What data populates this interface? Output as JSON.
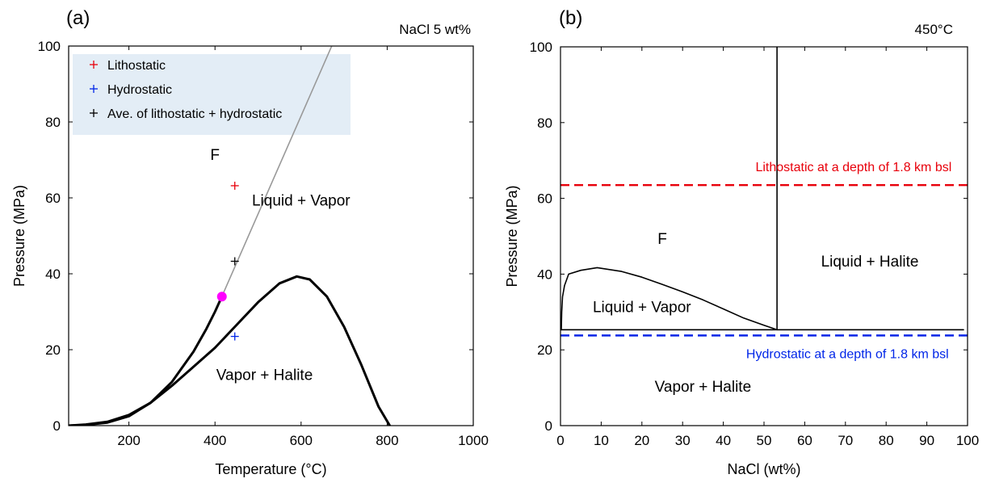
{
  "chart_data": [
    {
      "type": "line",
      "panel_label": "(a)",
      "corner_label": "NaCl 5 wt%",
      "xlabel": "Temperature (°C)",
      "ylabel": "Pressure (MPa)",
      "xlim": [
        60,
        1000
      ],
      "ylim": [
        0,
        100
      ],
      "x_ticks": [
        200,
        400,
        600,
        800,
        1000
      ],
      "y_ticks": [
        0,
        20,
        40,
        60,
        80,
        100
      ],
      "grid": false,
      "legend_position": "top-left",
      "legend": [
        {
          "label": "Lithostatic",
          "marker": "+",
          "color": "#e8000b"
        },
        {
          "label": "Hydrostatic",
          "marker": "+",
          "color": "#0025e8"
        },
        {
          "label": "Ave. of lithostatic + hydrostatic",
          "marker": "+",
          "color": "#000000"
        }
      ],
      "legend_bg": "#e3edf6",
      "series": [
        {
          "style": "thick-black",
          "color": "#000000",
          "x": [
            60,
            100,
            150,
            200,
            250,
            300,
            350,
            380,
            400,
            416
          ],
          "y": [
            0,
            0.2,
            0.8,
            2.5,
            6,
            11.5,
            19.5,
            25.5,
            30,
            34
          ]
        },
        {
          "style": "thick-black",
          "color": "#000000",
          "x": [
            60,
            100,
            150,
            200,
            250,
            300,
            350,
            400,
            450,
            500,
            550,
            590,
            620,
            660,
            700,
            740,
            780,
            806
          ],
          "y": [
            0,
            0.3,
            1,
            2.8,
            6,
            10.5,
            15.5,
            20.5,
            26.5,
            32.5,
            37.5,
            39.3,
            38.5,
            34,
            26,
            16,
            5,
            0
          ]
        },
        {
          "style": "thin-grey",
          "color": "#999999",
          "x": [
            416,
            675
          ],
          "y": [
            34,
            101
          ]
        }
      ],
      "points": [
        {
          "x": 446,
          "y": 63.2,
          "marker": "+",
          "color": "#e8000b"
        },
        {
          "x": 446,
          "y": 23.5,
          "marker": "+",
          "color": "#0025e8"
        },
        {
          "x": 446,
          "y": 43.3,
          "marker": "+",
          "color": "#000000"
        },
        {
          "x": 416,
          "y": 34,
          "marker": "circle",
          "color": "#ff00ff"
        }
      ],
      "regions": [
        {
          "text": "F",
          "x": 400,
          "y": 70
        },
        {
          "text": "Liquid + Vapor",
          "x": 600,
          "y": 58
        },
        {
          "text": "Vapor + Halite",
          "x": 515,
          "y": 12
        }
      ]
    },
    {
      "type": "line",
      "panel_label": "(b)",
      "corner_label": "450°C",
      "xlabel": "NaCl (wt%)",
      "ylabel": "Pressure (MPa)",
      "xlim": [
        0,
        100
      ],
      "ylim": [
        0,
        100
      ],
      "x_ticks": [
        0,
        10,
        20,
        30,
        40,
        50,
        60,
        70,
        80,
        90,
        100
      ],
      "y_ticks": [
        0,
        20,
        40,
        60,
        80,
        100
      ],
      "grid": false,
      "series": [
        {
          "style": "thin-black",
          "color": "#000000",
          "x": [
            0.2,
            0.3,
            0.5,
            1,
            2,
            5,
            9,
            15,
            20,
            25,
            30,
            35,
            40,
            45,
            50,
            53.2
          ],
          "y": [
            25.3,
            30,
            34,
            37,
            40,
            41,
            41.7,
            40.7,
            39.2,
            37.3,
            35.3,
            33.2,
            30.8,
            28.4,
            26.5,
            25.3
          ]
        },
        {
          "style": "thin-black",
          "color": "#000000",
          "x": [
            0,
            99
          ],
          "y": [
            25.3,
            25.3
          ]
        },
        {
          "style": "thin-black",
          "color": "#000000",
          "x": [
            53.2,
            53.2
          ],
          "y": [
            25.3,
            100
          ]
        }
      ],
      "hlines": [
        {
          "y": 63.5,
          "color": "#e8000b",
          "style": "dashed",
          "label": "Lithostatic at a depth of 1.8 km bsl",
          "label_x": 72,
          "label_y": 67.2
        },
        {
          "y": 23.8,
          "color": "#0025e8",
          "style": "dashed",
          "label": "Hydrostatic at a depth of 1.8 km bsl",
          "label_x": 70.5,
          "label_y": 17.8
        }
      ],
      "regions": [
        {
          "text": "F",
          "x": 25,
          "y": 48
        },
        {
          "text": "Liquid + Halite",
          "x": 76,
          "y": 42
        },
        {
          "text": "Liquid + Vapor",
          "x": 20,
          "y": 30
        },
        {
          "text": "Vapor + Halite",
          "x": 35,
          "y": 9
        }
      ]
    }
  ]
}
